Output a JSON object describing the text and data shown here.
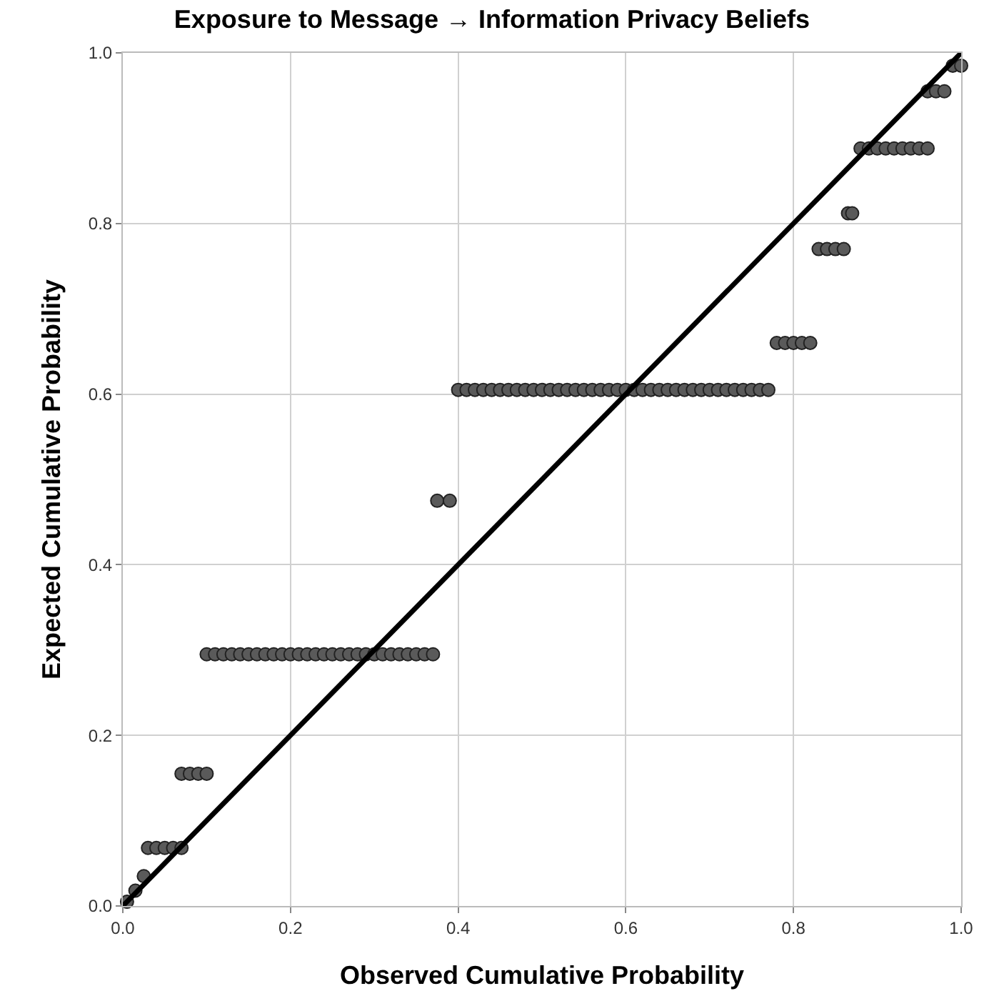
{
  "chart_data": {
    "type": "scatter",
    "title": "Exposure to Message → Information Privacy Beliefs",
    "xlabel": "Observed Cumulative Probability",
    "ylabel": "Expected Cumulative Probability",
    "xlim": [
      0,
      1
    ],
    "ylim": [
      0,
      1
    ],
    "xticks": [
      {
        "value": 0,
        "label": "0.0"
      },
      0.2,
      0.4,
      0.6,
      0.8,
      {
        "value": 1,
        "label": "1.0"
      }
    ],
    "yticks": [
      {
        "value": 0,
        "label": "0.0"
      },
      0.2,
      0.4,
      0.6,
      0.8,
      {
        "value": 1,
        "label": "1.0"
      }
    ],
    "grid": true,
    "marker": "circle",
    "series": [
      {
        "color": "#5a5a5a",
        "x": [
          0.005,
          0.015,
          0.025,
          0.03,
          0.04,
          0.05,
          0.06,
          0.07,
          0.07,
          0.08,
          0.09,
          0.1,
          0.1,
          0.11,
          0.12,
          0.13,
          0.14,
          0.15,
          0.16,
          0.17,
          0.18,
          0.19,
          0.2,
          0.21,
          0.22,
          0.23,
          0.24,
          0.25,
          0.26,
          0.27,
          0.28,
          0.29,
          0.3,
          0.31,
          0.32,
          0.33,
          0.34,
          0.35,
          0.36,
          0.37,
          0.375,
          0.39,
          0.4,
          0.41,
          0.42,
          0.43,
          0.44,
          0.45,
          0.46,
          0.47,
          0.48,
          0.49,
          0.5,
          0.51,
          0.52,
          0.53,
          0.54,
          0.55,
          0.56,
          0.57,
          0.58,
          0.59,
          0.6,
          0.61,
          0.62,
          0.63,
          0.64,
          0.65,
          0.66,
          0.67,
          0.68,
          0.69,
          0.7,
          0.71,
          0.72,
          0.73,
          0.74,
          0.75,
          0.76,
          0.77,
          0.78,
          0.79,
          0.8,
          0.81,
          0.82,
          0.83,
          0.84,
          0.85,
          0.86,
          0.865,
          0.87,
          0.88,
          0.89,
          0.9,
          0.91,
          0.92,
          0.93,
          0.94,
          0.95,
          0.96,
          0.96,
          0.97,
          0.98,
          0.99,
          1.0
        ],
        "values": [
          0.005,
          0.018,
          0.035,
          0.068,
          0.068,
          0.068,
          0.068,
          0.068,
          0.155,
          0.155,
          0.155,
          0.155,
          0.295,
          0.295,
          0.295,
          0.295,
          0.295,
          0.295,
          0.295,
          0.295,
          0.295,
          0.295,
          0.295,
          0.295,
          0.295,
          0.295,
          0.295,
          0.295,
          0.295,
          0.295,
          0.295,
          0.295,
          0.295,
          0.295,
          0.295,
          0.295,
          0.295,
          0.295,
          0.295,
          0.295,
          0.475,
          0.475,
          0.605,
          0.605,
          0.605,
          0.605,
          0.605,
          0.605,
          0.605,
          0.605,
          0.605,
          0.605,
          0.605,
          0.605,
          0.605,
          0.605,
          0.605,
          0.605,
          0.605,
          0.605,
          0.605,
          0.605,
          0.605,
          0.605,
          0.605,
          0.605,
          0.605,
          0.605,
          0.605,
          0.605,
          0.605,
          0.605,
          0.605,
          0.605,
          0.605,
          0.605,
          0.605,
          0.605,
          0.605,
          0.605,
          0.66,
          0.66,
          0.66,
          0.66,
          0.66,
          0.77,
          0.77,
          0.77,
          0.77,
          0.812,
          0.812,
          0.888,
          0.888,
          0.888,
          0.888,
          0.888,
          0.888,
          0.888,
          0.888,
          0.888,
          0.955,
          0.955,
          0.955,
          0.985,
          0.985
        ]
      },
      {
        "type": "line",
        "marker": "none",
        "color": "#000000",
        "x": [
          0,
          1
        ],
        "values": [
          0,
          1
        ]
      }
    ]
  }
}
